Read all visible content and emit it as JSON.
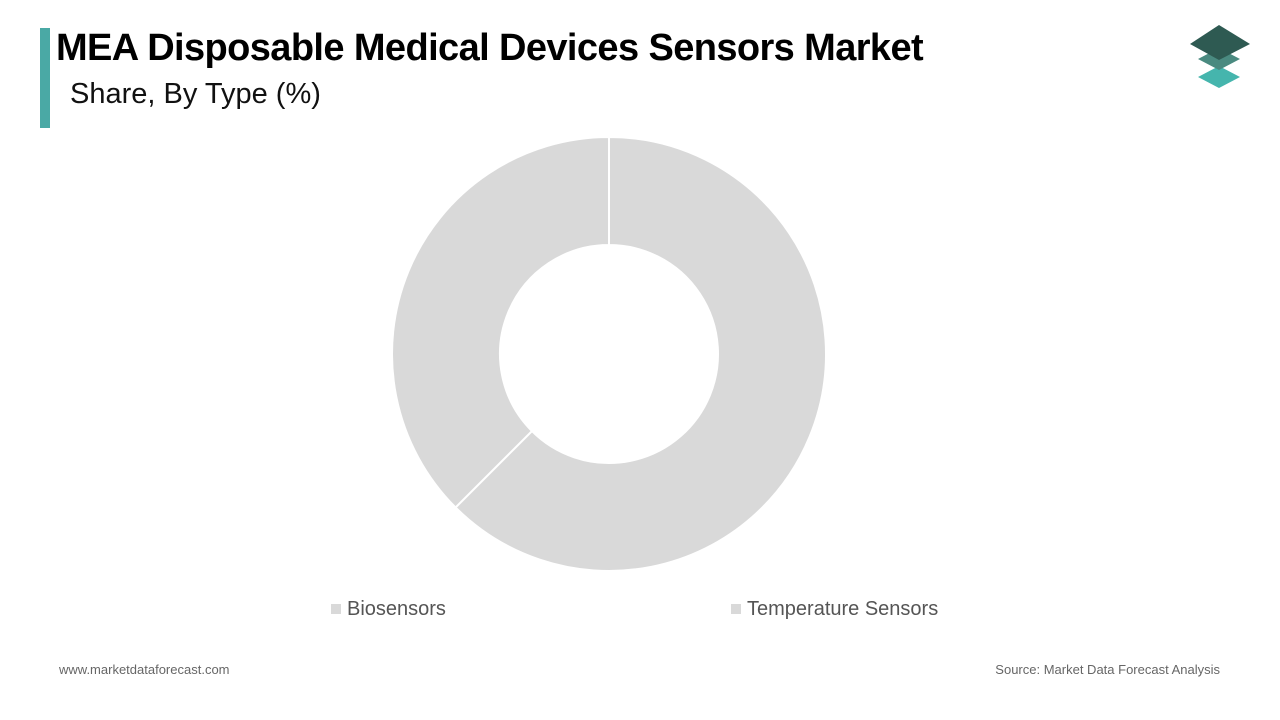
{
  "header": {
    "title": "MEA Disposable Medical Devices Sensors Market",
    "subtitle": "Share, By Type (%)",
    "accent_color": "#4aa9a5"
  },
  "logo": {
    "icon": "stacked-layers-logo-icon",
    "colors": [
      "#2e5a52",
      "#4a8a80",
      "#45b5ad"
    ]
  },
  "chart_data": {
    "type": "pie",
    "donut": true,
    "title": "",
    "categories": [
      "Biosensors",
      "Temperature Sensors"
    ],
    "values": [
      62.5,
      37.5
    ],
    "unit": "%",
    "colors": [
      "#d9d9d9",
      "#d9d9d9"
    ],
    "legend": "bottom"
  },
  "footer": {
    "website": "www.marketdataforecast.com",
    "source": "Source: Market Data Forecast Analysis"
  }
}
